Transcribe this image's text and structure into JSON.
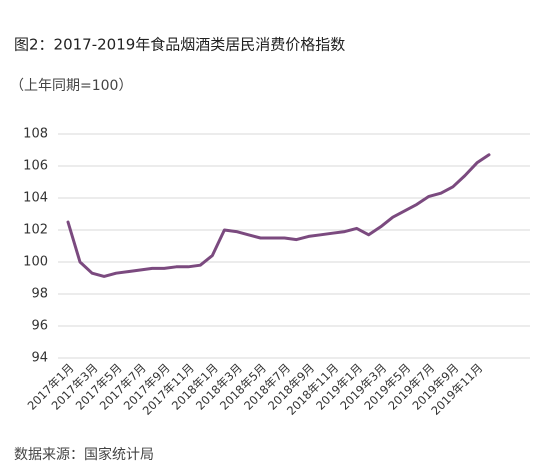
{
  "chart_data": {
    "type": "line",
    "title": "图2：2017-2019年食品烟酒类居民消费价格指数",
    "subtitle": "（上年同期=100）",
    "source": "数据来源：国家统计局",
    "categories": [
      "2017年1月",
      null,
      "2017年3月",
      null,
      "2017年5月",
      null,
      "2017年7月",
      null,
      "2017年9月",
      null,
      "2017年11月",
      null,
      "2018年1月",
      null,
      "2018年3月",
      null,
      "2018年5月",
      null,
      "2018年7月",
      null,
      "2018年9月",
      null,
      "2018年11月",
      null,
      "2019年1月",
      null,
      "2019年3月",
      null,
      "2019年5月",
      null,
      "2019年7月",
      null,
      "2019年9月",
      null,
      "2019年11月",
      null
    ],
    "series": [
      {
        "name": "食品烟酒类居民消费价格指数",
        "color": "#7b4a7f",
        "values": [
          102.5,
          100.0,
          99.3,
          99.1,
          99.3,
          99.4,
          99.5,
          99.6,
          99.6,
          99.7,
          99.7,
          99.8,
          100.4,
          102.0,
          101.9,
          101.7,
          101.5,
          101.5,
          101.5,
          101.4,
          101.6,
          101.7,
          101.8,
          101.9,
          102.1,
          101.7,
          102.2,
          102.8,
          103.2,
          103.6,
          104.1,
          104.3,
          104.7,
          105.4,
          106.2,
          106.7
        ]
      }
    ],
    "ylim": [
      94,
      108
    ],
    "yticks": [
      94,
      96,
      98,
      100,
      102,
      104,
      106,
      108
    ],
    "grid": true
  }
}
